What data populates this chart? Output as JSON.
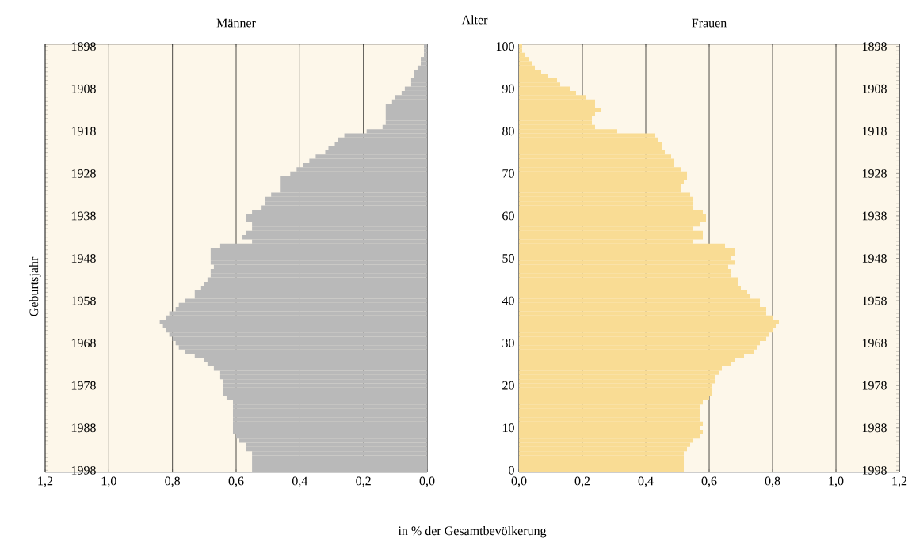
{
  "chart_data": [
    {
      "type": "bar",
      "orientation": "horizontal",
      "title": "Männer",
      "ylabel": "Geburtsjahr",
      "xlabel": "in % der Gesamtbevölkerung",
      "color": "#b9b9b9",
      "grid": "x",
      "categories": [
        "1898",
        null,
        null,
        null,
        null,
        null,
        null,
        null,
        null,
        null,
        "1908",
        null,
        null,
        null,
        null,
        null,
        null,
        null,
        null,
        null,
        "1918",
        null,
        null,
        null,
        null,
        null,
        null,
        null,
        null,
        null,
        "1928",
        null,
        null,
        null,
        null,
        null,
        null,
        null,
        null,
        null,
        "1938",
        null,
        null,
        null,
        null,
        null,
        null,
        null,
        null,
        null,
        "1948",
        null,
        null,
        null,
        null,
        null,
        null,
        null,
        null,
        null,
        "1958",
        null,
        null,
        null,
        null,
        null,
        null,
        null,
        null,
        null,
        "1968",
        null,
        null,
        null,
        null,
        null,
        null,
        null,
        null,
        null,
        "1978",
        null,
        null,
        null,
        null,
        null,
        null,
        null,
        null,
        null,
        "1988",
        null,
        null,
        null,
        null,
        null,
        null,
        null,
        null,
        null,
        "1998"
      ],
      "values": [
        0.01,
        0.01,
        0.01,
        0.02,
        0.02,
        0.03,
        0.04,
        0.04,
        0.05,
        0.05,
        0.07,
        0.08,
        0.1,
        0.11,
        0.13,
        0.13,
        0.13,
        0.13,
        0.13,
        0.14,
        0.19,
        0.26,
        0.28,
        0.29,
        0.31,
        0.32,
        0.35,
        0.37,
        0.39,
        0.41,
        0.43,
        0.46,
        0.46,
        0.46,
        0.46,
        0.49,
        0.51,
        0.51,
        0.52,
        0.55,
        0.57,
        0.57,
        0.55,
        0.55,
        0.57,
        0.58,
        0.55,
        0.65,
        0.68,
        0.68,
        0.68,
        0.68,
        0.67,
        0.68,
        0.68,
        0.69,
        0.7,
        0.71,
        0.73,
        0.73,
        0.76,
        0.78,
        0.79,
        0.81,
        0.82,
        0.84,
        0.83,
        0.82,
        0.81,
        0.8,
        0.79,
        0.78,
        0.76,
        0.73,
        0.7,
        0.69,
        0.67,
        0.65,
        0.65,
        0.64,
        0.64,
        0.64,
        0.64,
        0.63,
        0.61,
        0.61,
        0.61,
        0.61,
        0.61,
        0.61,
        0.61,
        0.61,
        0.6,
        0.59,
        0.57,
        0.57,
        0.55,
        0.55,
        0.55,
        0.55,
        0.55
      ],
      "xlim": [
        1.2,
        0
      ],
      "xticks": [
        {
          "value": 1.2,
          "label": "1,2"
        },
        {
          "value": 1.0,
          "label": "1,0"
        },
        {
          "value": 0.8,
          "label": "0,8"
        },
        {
          "value": 0.6,
          "label": "0,6"
        },
        {
          "value": 0.4,
          "label": "0,4"
        },
        {
          "value": 0.2,
          "label": "0,2"
        },
        {
          "value": 0,
          "label": "0,0"
        }
      ]
    },
    {
      "type": "bar",
      "orientation": "horizontal",
      "title": "Frauen",
      "ylabel": "Alter",
      "color": "#f9dc94",
      "grid": "x",
      "categories": [
        "100",
        null,
        null,
        null,
        null,
        null,
        null,
        null,
        null,
        null,
        "90",
        null,
        null,
        null,
        null,
        null,
        null,
        null,
        null,
        null,
        "80",
        null,
        null,
        null,
        null,
        null,
        null,
        null,
        null,
        null,
        "70",
        null,
        null,
        null,
        null,
        null,
        null,
        null,
        null,
        null,
        "60",
        null,
        null,
        null,
        null,
        null,
        null,
        null,
        null,
        null,
        "50",
        null,
        null,
        null,
        null,
        null,
        null,
        null,
        null,
        null,
        "40",
        null,
        null,
        null,
        null,
        null,
        null,
        null,
        null,
        null,
        "30",
        null,
        null,
        null,
        null,
        null,
        null,
        null,
        null,
        null,
        "20",
        null,
        null,
        null,
        null,
        null,
        null,
        null,
        null,
        null,
        "10",
        null,
        null,
        null,
        null,
        null,
        null,
        null,
        null,
        null,
        "0"
      ],
      "values": [
        0.01,
        0.01,
        0.02,
        0.03,
        0.04,
        0.05,
        0.07,
        0.09,
        0.12,
        0.13,
        0.16,
        0.18,
        0.21,
        0.24,
        0.24,
        0.26,
        0.24,
        0.23,
        0.23,
        0.24,
        0.31,
        0.43,
        0.44,
        0.45,
        0.45,
        0.46,
        0.48,
        0.49,
        0.49,
        0.51,
        0.53,
        0.53,
        0.52,
        0.51,
        0.51,
        0.54,
        0.55,
        0.55,
        0.55,
        0.58,
        0.59,
        0.59,
        0.57,
        0.55,
        0.58,
        0.58,
        0.55,
        0.65,
        0.68,
        0.68,
        0.67,
        0.68,
        0.66,
        0.67,
        0.67,
        0.69,
        0.69,
        0.7,
        0.72,
        0.73,
        0.76,
        0.76,
        0.78,
        0.78,
        0.8,
        0.82,
        0.81,
        0.8,
        0.79,
        0.78,
        0.76,
        0.75,
        0.74,
        0.71,
        0.68,
        0.67,
        0.64,
        0.63,
        0.62,
        0.62,
        0.61,
        0.61,
        0.61,
        0.6,
        0.58,
        0.57,
        0.57,
        0.57,
        0.57,
        0.58,
        0.57,
        0.58,
        0.57,
        0.55,
        0.54,
        0.53,
        0.52,
        0.52,
        0.52,
        0.52,
        0.52
      ],
      "xlim": [
        0,
        1.2
      ],
      "xticks": [
        {
          "value": 0,
          "label": "0,0"
        },
        {
          "value": 0.2,
          "label": "0,2"
        },
        {
          "value": 0.4,
          "label": "0,4"
        },
        {
          "value": 0.6,
          "label": "0,6"
        },
        {
          "value": 0.8,
          "label": "0,8"
        },
        {
          "value": 1.0,
          "label": "1,0"
        },
        {
          "value": 1.2,
          "label": "1,2"
        }
      ],
      "y2lim": [
        1998.5,
        1897.5
      ],
      "y2ticks": [
        1898,
        1908,
        1918,
        1928,
        1938,
        1948,
        1958,
        1968,
        1978,
        1988,
        1998
      ]
    }
  ]
}
